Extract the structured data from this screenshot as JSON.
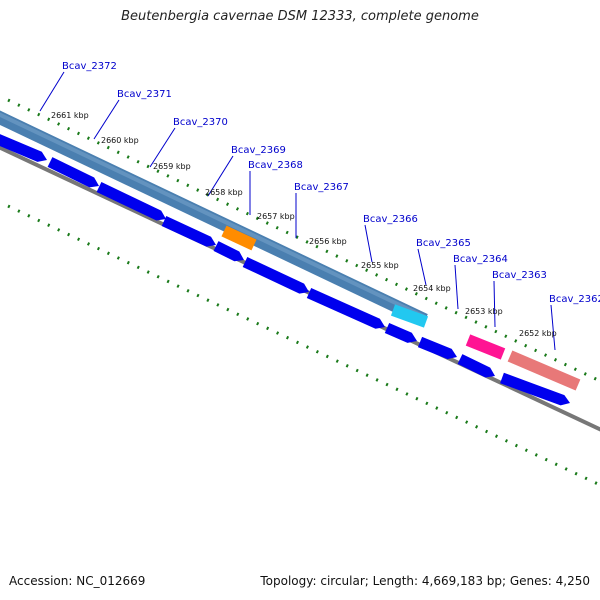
{
  "title": "Beutenbergia cavernae DSM 12333, complete genome",
  "footer": {
    "accession": "Accession: NC_012669",
    "summary": "Topology: circular; Length: 4,669,183 bp; Genes: 4,250"
  },
  "colors": {
    "cds_band": "#4a7fb0",
    "forward_gene": "#0000ee",
    "backbone": "#777777",
    "tick": "#1a7a1a",
    "label_line": "#0000cc",
    "highlight_orange": "#ff8c00",
    "highlight_cyan": "#22c8f0",
    "highlight_magenta": "#ff1493",
    "highlight_salmon": "#e87878"
  },
  "kbp_labels": [
    "2661 kbp",
    "2660 kbp",
    "2659 kbp",
    "2658 kbp",
    "2657 kbp",
    "2656 kbp",
    "2655 kbp",
    "2654 kbp",
    "2653 kbp",
    "2652 kbp"
  ],
  "genes": [
    {
      "name": "Bcav_2372"
    },
    {
      "name": "Bcav_2371"
    },
    {
      "name": "Bcav_2370"
    },
    {
      "name": "Bcav_2369"
    },
    {
      "name": "Bcav_2368"
    },
    {
      "name": "Bcav_2367"
    },
    {
      "name": "Bcav_2366"
    },
    {
      "name": "Bcav_2365"
    },
    {
      "name": "Bcav_2364"
    },
    {
      "name": "Bcav_2363"
    },
    {
      "name": "Bcav_2362"
    }
  ]
}
